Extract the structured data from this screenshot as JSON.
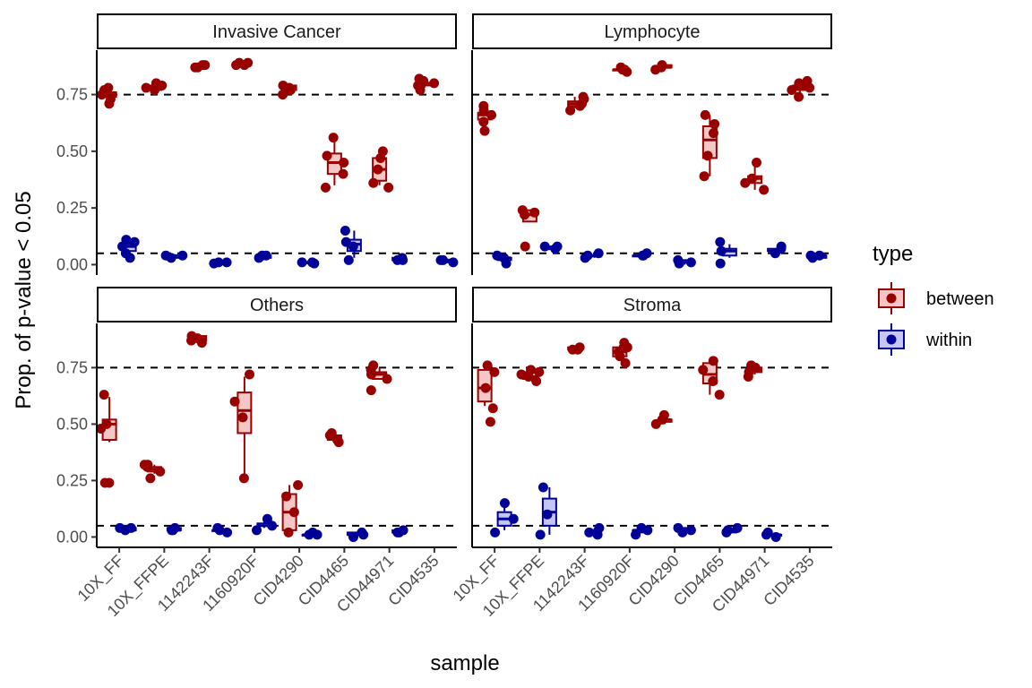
{
  "chart_data": {
    "type": "boxplot",
    "xlabel": "sample",
    "ylabel": "Prop. of p-value < 0.05",
    "ylim": [
      -0.03,
      0.93
    ],
    "yticks": [
      0,
      0.25,
      0.5,
      0.75
    ],
    "ytick_labels": [
      "0.00",
      "0.25",
      "0.50",
      "0.75"
    ],
    "reference_lines": [
      0.05,
      0.75
    ],
    "categories": [
      "10X_FF",
      "10X_FFPE",
      "1142243F",
      "1160920F",
      "CID4290",
      "CID4465",
      "CID44971",
      "CID4535"
    ],
    "legend": {
      "title": "type",
      "entries": [
        {
          "key": "between",
          "label": "between",
          "color": "#990000",
          "fill": "#f4c6c6"
        },
        {
          "key": "within",
          "label": "within",
          "color": "#000099",
          "fill": "#c6c6f4"
        }
      ]
    },
    "facets": [
      {
        "title": "Invasive Cancer",
        "between": [
          {
            "box": [
              0.73,
              0.74,
              0.75,
              0.76,
              0.77
            ],
            "points": [
              0.71,
              0.73,
              0.75,
              0.77,
              0.78
            ]
          },
          {
            "box": [
              0.77,
              0.77,
              0.78,
              0.79,
              0.8
            ],
            "points": [
              0.77,
              0.78,
              0.79,
              0.8
            ]
          },
          {
            "box": [
              0.87,
              0.87,
              0.88,
              0.88,
              0.88
            ],
            "points": [
              0.87,
              0.87,
              0.88,
              0.88
            ]
          },
          {
            "box": [
              0.88,
              0.88,
              0.89,
              0.89,
              0.89
            ],
            "points": [
              0.88,
              0.88,
              0.89,
              0.89
            ]
          },
          {
            "box": [
              0.76,
              0.77,
              0.78,
              0.79,
              0.79
            ],
            "points": [
              0.75,
              0.77,
              0.78,
              0.79
            ]
          },
          {
            "box": [
              0.35,
              0.4,
              0.45,
              0.49,
              0.56
            ],
            "points": [
              0.34,
              0.4,
              0.45,
              0.48,
              0.56
            ]
          },
          {
            "box": [
              0.35,
              0.37,
              0.42,
              0.47,
              0.5
            ],
            "points": [
              0.34,
              0.36,
              0.42,
              0.47,
              0.5
            ]
          },
          {
            "box": [
              0.78,
              0.79,
              0.8,
              0.8,
              0.81
            ],
            "points": [
              0.77,
              0.79,
              0.8,
              0.81,
              0.82
            ]
          }
        ],
        "within": [
          {
            "box": [
              0.04,
              0.06,
              0.08,
              0.09,
              0.11
            ],
            "points": [
              0.03,
              0.05,
              0.08,
              0.1,
              0.11
            ]
          },
          {
            "box": [
              0.03,
              0.03,
              0.04,
              0.04,
              0.04
            ],
            "points": [
              0.03,
              0.04,
              0.04
            ]
          },
          {
            "box": [
              0.01,
              0.01,
              0.01,
              0.01,
              0.01
            ],
            "points": [
              0.005,
              0.01,
              0.01
            ]
          },
          {
            "box": [
              0.03,
              0.03,
              0.04,
              0.04,
              0.04
            ],
            "points": [
              0.03,
              0.04,
              0.04
            ]
          },
          {
            "box": [
              0.01,
              0.01,
              0.01,
              0.01,
              0.01
            ],
            "points": [
              0.005,
              0.01,
              0.01
            ]
          },
          {
            "box": [
              0.03,
              0.06,
              0.09,
              0.11,
              0.15
            ],
            "points": [
              0.02,
              0.08,
              0.1,
              0.15
            ]
          },
          {
            "box": [
              0.02,
              0.02,
              0.02,
              0.03,
              0.03
            ],
            "points": [
              0.02,
              0.02,
              0.03
            ]
          },
          {
            "box": [
              0.01,
              0.01,
              0.02,
              0.02,
              0.02
            ],
            "points": [
              0.01,
              0.02,
              0.02
            ]
          }
        ]
      },
      {
        "title": "Lymphocyte",
        "between": [
          {
            "box": [
              0.61,
              0.64,
              0.66,
              0.67,
              0.7
            ],
            "points": [
              0.59,
              0.63,
              0.66,
              0.68,
              0.7
            ]
          },
          {
            "box": [
              0.19,
              0.19,
              0.22,
              0.24,
              0.24
            ],
            "points": [
              0.08,
              0.22,
              0.23,
              0.24
            ]
          },
          {
            "box": [
              0.69,
              0.7,
              0.71,
              0.72,
              0.74
            ],
            "points": [
              0.68,
              0.7,
              0.71,
              0.73,
              0.74
            ]
          },
          {
            "box": [
              0.85,
              0.86,
              0.86,
              0.86,
              0.87
            ],
            "points": [
              0.85,
              0.86,
              0.86,
              0.87
            ]
          },
          {
            "box": [
              0.86,
              0.87,
              0.87,
              0.88,
              0.88
            ],
            "points": [
              0.86,
              0.87,
              0.88
            ]
          },
          {
            "box": [
              0.39,
              0.47,
              0.55,
              0.61,
              0.66
            ],
            "points": [
              0.39,
              0.48,
              0.58,
              0.62,
              0.66
            ]
          },
          {
            "box": [
              0.33,
              0.36,
              0.38,
              0.39,
              0.45
            ],
            "points": [
              0.33,
              0.36,
              0.38,
              0.45
            ]
          },
          {
            "box": [
              0.75,
              0.77,
              0.78,
              0.79,
              0.81
            ],
            "points": [
              0.74,
              0.77,
              0.78,
              0.8,
              0.81
            ]
          }
        ],
        "within": [
          {
            "box": [
              0.01,
              0.02,
              0.03,
              0.03,
              0.04
            ],
            "points": [
              0.005,
              0.03,
              0.04
            ]
          },
          {
            "box": [
              0.07,
              0.07,
              0.07,
              0.08,
              0.08
            ],
            "points": [
              0.07,
              0.08,
              0.08
            ]
          },
          {
            "box": [
              0.03,
              0.04,
              0.04,
              0.04,
              0.05
            ],
            "points": [
              0.03,
              0.04,
              0.05
            ]
          },
          {
            "box": [
              0.03,
              0.04,
              0.04,
              0.04,
              0.05
            ],
            "points": [
              0.04,
              0.04,
              0.05
            ]
          },
          {
            "box": [
              0.0,
              0.01,
              0.01,
              0.02,
              0.02
            ],
            "points": [
              0.005,
              0.01,
              0.02
            ]
          },
          {
            "box": [
              0.03,
              0.04,
              0.06,
              0.07,
              0.09
            ],
            "points": [
              0.005,
              0.06,
              0.1
            ]
          },
          {
            "box": [
              0.05,
              0.06,
              0.06,
              0.07,
              0.07
            ],
            "points": [
              0.05,
              0.07,
              0.08
            ]
          },
          {
            "box": [
              0.03,
              0.03,
              0.04,
              0.04,
              0.04
            ],
            "points": [
              0.03,
              0.04,
              0.04
            ]
          }
        ]
      },
      {
        "title": "Others",
        "between": [
          {
            "box": [
              0.42,
              0.43,
              0.5,
              0.52,
              0.62
            ],
            "points": [
              0.24,
              0.24,
              0.48,
              0.5,
              0.63
            ]
          },
          {
            "box": [
              0.28,
              0.29,
              0.3,
              0.31,
              0.32
            ],
            "points": [
              0.26,
              0.29,
              0.31,
              0.32,
              0.32
            ]
          },
          {
            "box": [
              0.87,
              0.87,
              0.88,
              0.89,
              0.89
            ],
            "points": [
              0.86,
              0.87,
              0.88,
              0.89
            ]
          },
          {
            "box": [
              0.26,
              0.46,
              0.56,
              0.64,
              0.71
            ],
            "points": [
              0.26,
              0.53,
              0.6,
              0.72
            ]
          },
          {
            "box": [
              0.02,
              0.03,
              0.11,
              0.19,
              0.23
            ],
            "points": [
              0.02,
              0.11,
              0.18,
              0.23
            ]
          },
          {
            "box": [
              0.43,
              0.43,
              0.44,
              0.45,
              0.46
            ],
            "points": [
              0.42,
              0.43,
              0.45,
              0.46
            ]
          },
          {
            "box": [
              0.7,
              0.7,
              0.72,
              0.73,
              0.75
            ],
            "points": [
              0.65,
              0.7,
              0.72,
              0.74,
              0.76
            ]
          },
          {
            "box": [
              0.0,
              0.0,
              0.0,
              0.0,
              0.0
            ],
            "points": []
          }
        ],
        "within": [
          {
            "box": [
              0.03,
              0.03,
              0.03,
              0.04,
              0.04
            ],
            "points": [
              0.03,
              0.04,
              0.04
            ]
          },
          {
            "box": [
              0.03,
              0.03,
              0.03,
              0.04,
              0.04
            ],
            "points": [
              0.03,
              0.03,
              0.04
            ]
          },
          {
            "box": [
              0.03,
              0.03,
              0.03,
              0.03,
              0.04
            ],
            "points": [
              0.02,
              0.03,
              0.04
            ]
          },
          {
            "box": [
              0.04,
              0.05,
              0.05,
              0.06,
              0.07
            ],
            "points": [
              0.03,
              0.05,
              0.08
            ]
          },
          {
            "box": [
              0.01,
              0.01,
              0.01,
              0.01,
              0.02
            ],
            "points": [
              0.01,
              0.01,
              0.02
            ]
          },
          {
            "box": [
              0.0,
              0.01,
              0.01,
              0.02,
              0.02
            ],
            "points": [
              0.0,
              0.01,
              0.02
            ]
          },
          {
            "box": [
              0.02,
              0.02,
              0.02,
              0.03,
              0.03
            ],
            "points": [
              0.02,
              0.02,
              0.03
            ]
          },
          {
            "box": [
              0.0,
              0.0,
              0.0,
              0.0,
              0.0
            ],
            "points": []
          }
        ]
      },
      {
        "title": "Stroma",
        "between": [
          {
            "box": [
              0.58,
              0.6,
              0.66,
              0.74,
              0.76
            ],
            "points": [
              0.51,
              0.57,
              0.66,
              0.73,
              0.76
            ]
          },
          {
            "box": [
              0.69,
              0.7,
              0.71,
              0.73,
              0.74
            ],
            "points": [
              0.69,
              0.71,
              0.72,
              0.73,
              0.74
            ]
          },
          {
            "box": [
              0.83,
              0.83,
              0.83,
              0.84,
              0.84
            ],
            "points": [
              0.83,
              0.83,
              0.84
            ]
          },
          {
            "box": [
              0.79,
              0.8,
              0.82,
              0.84,
              0.85
            ],
            "points": [
              0.77,
              0.8,
              0.82,
              0.84,
              0.86
            ]
          },
          {
            "box": [
              0.5,
              0.51,
              0.52,
              0.52,
              0.54
            ],
            "points": [
              0.5,
              0.52,
              0.54
            ]
          },
          {
            "box": [
              0.63,
              0.68,
              0.72,
              0.77,
              0.78
            ],
            "points": [
              0.63,
              0.69,
              0.74,
              0.78
            ]
          },
          {
            "box": [
              0.72,
              0.73,
              0.74,
              0.75,
              0.76
            ],
            "points": [
              0.71,
              0.73,
              0.75,
              0.76
            ]
          },
          {
            "box": [
              0.0,
              0.0,
              0.0,
              0.0,
              0.0
            ],
            "points": []
          }
        ],
        "within": [
          {
            "box": [
              0.03,
              0.05,
              0.08,
              0.11,
              0.15
            ],
            "points": [
              0.02,
              0.08,
              0.15
            ]
          },
          {
            "box": [
              0.01,
              0.05,
              0.11,
              0.17,
              0.22
            ],
            "points": [
              0.01,
              0.1,
              0.22
            ]
          },
          {
            "box": [
              0.01,
              0.02,
              0.02,
              0.03,
              0.04
            ],
            "points": [
              0.01,
              0.02,
              0.04
            ]
          },
          {
            "box": [
              0.01,
              0.02,
              0.03,
              0.03,
              0.04
            ],
            "points": [
              0.01,
              0.03,
              0.04
            ]
          },
          {
            "box": [
              0.02,
              0.03,
              0.03,
              0.04,
              0.04
            ],
            "points": [
              0.02,
              0.03,
              0.04
            ]
          },
          {
            "box": [
              0.02,
              0.02,
              0.03,
              0.03,
              0.04
            ],
            "points": [
              0.02,
              0.03,
              0.04
            ]
          },
          {
            "box": [
              0.0,
              0.01,
              0.01,
              0.01,
              0.02
            ],
            "points": [
              0.0,
              0.01,
              0.02
            ]
          },
          {
            "box": [
              0.0,
              0.0,
              0.0,
              0.0,
              0.0
            ],
            "points": []
          }
        ]
      }
    ]
  }
}
